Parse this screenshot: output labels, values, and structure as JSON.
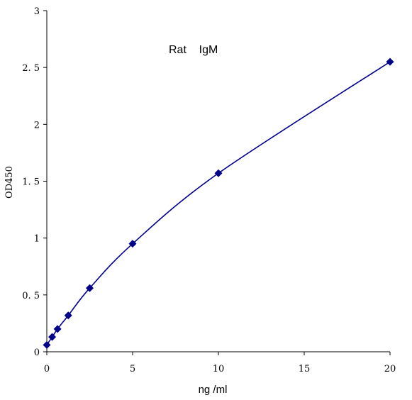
{
  "chart_data": {
    "type": "scatter",
    "title": "Rat    IgM",
    "xlabel": "ng /ml",
    "ylabel": "OD450",
    "xlim": [
      0,
      20
    ],
    "ylim": [
      0,
      3
    ],
    "x_ticks": [
      "0",
      "5",
      "10",
      "15",
      "20"
    ],
    "y_ticks": [
      "0",
      "0. 5",
      "1",
      "1. 5",
      "2",
      "2. 5",
      "3"
    ],
    "grid": false,
    "legend": "none",
    "marker": "diamond",
    "series_color": "#00008B",
    "curve": "smooth fit through points",
    "series": [
      {
        "x": [
          0,
          0.3125,
          0.625,
          1.25,
          2.5,
          5,
          10,
          20
        ],
        "y": [
          0.06,
          0.13,
          0.2,
          0.32,
          0.56,
          0.95,
          1.57,
          2.55
        ]
      }
    ]
  }
}
